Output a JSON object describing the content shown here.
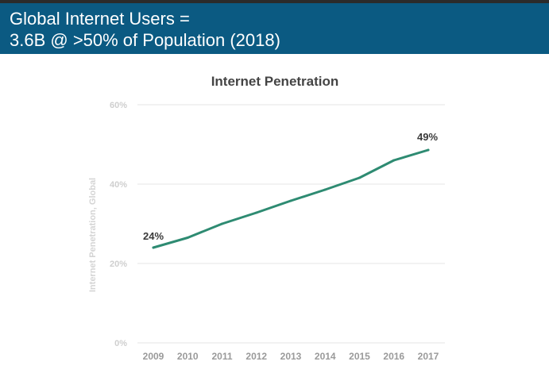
{
  "header": {
    "title_line1": "Global Internet Users =",
    "title_line2": "3.6B @ >50% of Population (2018)",
    "background_color": "#0b5a82"
  },
  "chart_data": {
    "type": "line",
    "title": "Internet Penetration",
    "xlabel": "",
    "ylabel": "Internet Penetration, Global",
    "x": [
      "2009",
      "2010",
      "2011",
      "2012",
      "2013",
      "2014",
      "2015",
      "2016",
      "2017"
    ],
    "series": [
      {
        "values": [
          24,
          26.5,
          30,
          32.8,
          35.8,
          38.6,
          41.6,
          46,
          48.6
        ],
        "color": "#2e8b72"
      }
    ],
    "yticks": [
      "0%",
      "20%",
      "40%",
      "60%"
    ],
    "ylim": [
      0,
      60
    ],
    "grid": true,
    "annotations": [
      {
        "x": "2009",
        "text": "24%"
      },
      {
        "x": "2017",
        "text": "49%"
      }
    ]
  }
}
